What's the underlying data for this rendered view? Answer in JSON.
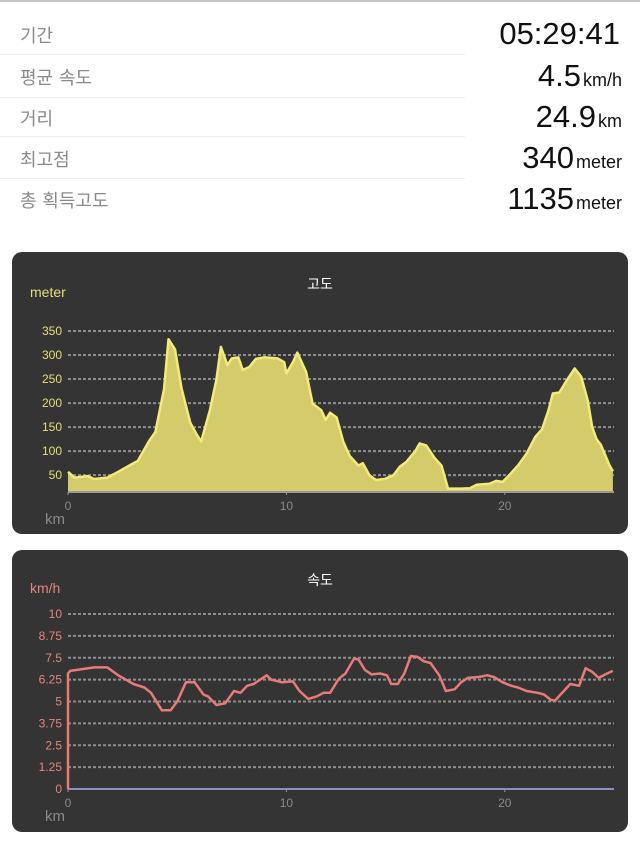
{
  "stats": [
    {
      "label": "기간",
      "value": "05:29:41",
      "unit": ""
    },
    {
      "label": "평균 속도",
      "value": "4.5",
      "unit": "km/h"
    },
    {
      "label": "거리",
      "value": "24.9",
      "unit": "km"
    },
    {
      "label": "최고점",
      "value": "340",
      "unit": "meter"
    },
    {
      "label": "총 획득고도",
      "value": "1135",
      "unit": "meter"
    }
  ],
  "chart_data": [
    {
      "type": "area",
      "title": "고도",
      "ylabel": "meter",
      "xlabel": "km",
      "xlim": [
        0,
        25
      ],
      "ylim": [
        15,
        350
      ],
      "yticks": [
        50,
        100,
        150,
        200,
        250,
        300,
        350
      ],
      "xticks": [
        0,
        10,
        20
      ],
      "grid": true,
      "color": "#f2ea7a",
      "fill": "#d4cc6a",
      "x": [
        0,
        0.3,
        0.9,
        1.2,
        1.8,
        2.3,
        2.8,
        3.2,
        3.7,
        4.0,
        4.4,
        4.6,
        4.9,
        5.2,
        5.6,
        5.9,
        6.1,
        6.5,
        6.8,
        7.0,
        7.3,
        7.5,
        7.8,
        8.0,
        8.3,
        8.6,
        9.0,
        9.6,
        9.9,
        10.0,
        10.3,
        10.5,
        10.9,
        11.2,
        11.6,
        11.8,
        12.0,
        12.3,
        12.6,
        12.9,
        13.3,
        13.5,
        13.8,
        14.1,
        14.5,
        14.9,
        15.2,
        15.5,
        15.9,
        16.1,
        16.4,
        16.8,
        17.1,
        17.4,
        18.0,
        18.4,
        18.7,
        19.3,
        19.6,
        19.9,
        20.2,
        20.6,
        21.0,
        21.4,
        21.7,
        22.0,
        22.2,
        22.5,
        22.8,
        23.2,
        23.5,
        23.8,
        24.0,
        24.2,
        24.4,
        24.8,
        24.95
      ],
      "y": [
        57,
        45,
        48,
        42,
        45,
        57,
        70,
        80,
        120,
        140,
        230,
        333,
        312,
        230,
        159,
        134,
        120,
        186,
        250,
        317,
        279,
        293,
        295,
        269,
        275,
        292,
        295,
        293,
        285,
        262,
        285,
        305,
        265,
        199,
        185,
        165,
        180,
        170,
        120,
        90,
        70,
        75,
        50,
        40,
        42,
        50,
        68,
        78,
        100,
        116,
        112,
        85,
        70,
        22,
        22,
        23,
        30,
        32,
        38,
        36,
        50,
        70,
        95,
        130,
        145,
        185,
        220,
        222,
        245,
        272,
        255,
        205,
        150,
        125,
        113,
        70,
        58
      ]
    },
    {
      "type": "line",
      "title": "속도",
      "ylabel": "km/h",
      "xlabel": "km",
      "xlim": [
        0,
        25
      ],
      "ylim": [
        0,
        10
      ],
      "yticks": [
        0,
        1.25,
        2.5,
        3.75,
        5,
        6.25,
        7.5,
        8.75,
        10
      ],
      "ytick_labels": [
        "0",
        "1.25",
        "2.5",
        "3.75",
        "5",
        "6.25",
        "7.5",
        "8.75",
        "10"
      ],
      "xticks": [
        0,
        10,
        20
      ],
      "grid": true,
      "color": "#e87a78",
      "zero_line_color": "#8c90c4",
      "x": [
        0,
        0,
        0.1,
        1.2,
        1.8,
        2.3,
        3.0,
        3.5,
        3.8,
        4.3,
        4.7,
        5.0,
        5.4,
        5.8,
        6.2,
        6.4,
        6.8,
        7.2,
        7.6,
        7.9,
        8.2,
        8.5,
        9.1,
        9.3,
        9.8,
        10.3,
        10.6,
        11.0,
        11.4,
        11.7,
        12.0,
        12.4,
        12.7,
        13.1,
        13.3,
        13.6,
        13.9,
        14.3,
        14.6,
        14.8,
        15.1,
        15.4,
        15.7,
        16.0,
        16.3,
        16.6,
        17.0,
        17.3,
        17.7,
        18.0,
        18.3,
        18.8,
        19.2,
        19.5,
        19.9,
        20.3,
        20.6,
        21.0,
        21.5,
        21.8,
        22.1,
        22.3,
        22.7,
        23.0,
        23.4,
        23.7,
        24.0,
        24.3,
        24.6,
        24.95
      ],
      "y": [
        0,
        6.6,
        6.75,
        6.95,
        6.95,
        6.5,
        6.0,
        5.8,
        5.5,
        4.5,
        4.5,
        5.0,
        6.1,
        6.1,
        5.4,
        5.3,
        4.8,
        4.9,
        5.6,
        5.5,
        5.9,
        6.0,
        6.5,
        6.25,
        6.1,
        6.15,
        5.6,
        5.15,
        5.3,
        5.5,
        5.5,
        6.3,
        6.6,
        7.45,
        7.4,
        6.8,
        6.55,
        6.6,
        6.5,
        6.0,
        6.0,
        6.6,
        7.6,
        7.55,
        7.3,
        7.2,
        6.5,
        5.6,
        5.7,
        6.1,
        6.35,
        6.4,
        6.5,
        6.4,
        6.1,
        5.9,
        5.8,
        5.6,
        5.5,
        5.4,
        5.1,
        5.05,
        5.6,
        6.0,
        5.9,
        6.9,
        6.7,
        6.35,
        6.55,
        6.75
      ]
    }
  ]
}
